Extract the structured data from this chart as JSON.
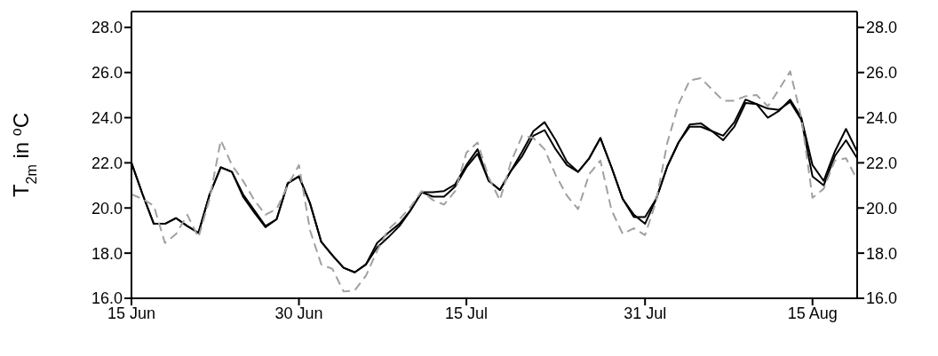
{
  "chart_data": {
    "type": "line",
    "ylabel": "T$_{2m}$ in $^{o}$C",
    "x": [
      "--06-15",
      "--06-16",
      "--06-17",
      "--06-18",
      "--06-19",
      "--06-20",
      "--06-21",
      "--06-22",
      "--06-23",
      "--06-24",
      "--06-25",
      "--06-26",
      "--06-27",
      "--06-28",
      "--06-29",
      "--06-30",
      "--07-01",
      "--07-02",
      "--07-03",
      "--07-04",
      "--07-05",
      "--07-06",
      "--07-07",
      "--07-08",
      "--07-09",
      "--07-10",
      "--07-11",
      "--07-12",
      "--07-13",
      "--07-14",
      "--07-15",
      "--07-16",
      "--07-17",
      "--07-18",
      "--07-19",
      "--07-20",
      "--07-21",
      "--07-22",
      "--07-23",
      "--07-24",
      "--07-25",
      "--07-26",
      "--07-27",
      "--07-28",
      "--07-29",
      "--07-30",
      "--07-31",
      "--08-01",
      "--08-02",
      "--08-03",
      "--08-04",
      "--08-05",
      "--08-06",
      "--08-07",
      "--08-08",
      "--08-09",
      "--08-10",
      "--08-11",
      "--08-12",
      "--08-13",
      "--08-14",
      "--08-15",
      "--08-16",
      "--08-17",
      "--08-18",
      "--08-19"
    ],
    "series": [
      {
        "color": "#000000",
        "line_style": "solid",
        "values": [
          22.0,
          20.6,
          19.3,
          19.3,
          19.55,
          19.2,
          18.9,
          20.6,
          21.8,
          21.6,
          20.5,
          19.8,
          19.15,
          19.5,
          21.1,
          21.4,
          20.2,
          18.5,
          17.9,
          17.35,
          17.15,
          17.5,
          18.25,
          18.7,
          19.2,
          19.9,
          20.7,
          20.5,
          20.5,
          20.95,
          21.8,
          22.4,
          21.2,
          20.8,
          21.65,
          22.3,
          23.2,
          23.45,
          22.6,
          21.9,
          21.6,
          22.2,
          23.1,
          21.8,
          20.4,
          19.7,
          19.3,
          20.4,
          21.85,
          22.9,
          23.6,
          23.6,
          23.4,
          23.2,
          23.8,
          24.8,
          24.6,
          24.0,
          24.3,
          24.8,
          24.0,
          21.9,
          21.2,
          22.5,
          23.5,
          22.5
        ]
      },
      {
        "color": "#000000",
        "line_style": "solid",
        "values": [
          22.0,
          20.6,
          19.3,
          19.3,
          19.55,
          19.2,
          18.9,
          20.6,
          21.8,
          21.6,
          20.6,
          19.9,
          19.2,
          19.5,
          21.1,
          21.4,
          20.2,
          18.5,
          17.9,
          17.35,
          17.15,
          17.5,
          18.45,
          18.9,
          19.3,
          19.9,
          20.7,
          20.7,
          20.75,
          21.05,
          21.9,
          22.6,
          21.2,
          20.8,
          21.65,
          22.5,
          23.4,
          23.8,
          23.0,
          22.05,
          21.6,
          22.2,
          23.1,
          21.8,
          20.4,
          19.6,
          19.6,
          20.4,
          21.85,
          22.9,
          23.7,
          23.75,
          23.4,
          23.0,
          23.6,
          24.65,
          24.6,
          24.4,
          24.35,
          24.7,
          23.9,
          21.4,
          21.0,
          22.3,
          23.0,
          22.2
        ]
      },
      {
        "color": "#a0a0a0",
        "line_style": "dashed",
        "values": [
          20.6,
          20.4,
          20.1,
          18.45,
          18.85,
          19.7,
          18.7,
          20.4,
          23.0,
          21.9,
          21.2,
          20.35,
          19.7,
          19.95,
          21.0,
          21.9,
          19.0,
          17.5,
          17.3,
          16.3,
          16.35,
          17.0,
          18.1,
          19.05,
          19.5,
          20.05,
          20.75,
          20.35,
          20.15,
          20.75,
          22.45,
          22.9,
          21.35,
          20.35,
          22.05,
          23.2,
          23.1,
          22.6,
          21.45,
          20.55,
          19.95,
          21.5,
          22.1,
          19.9,
          18.85,
          19.1,
          18.8,
          20.3,
          22.9,
          24.6,
          25.65,
          25.75,
          25.25,
          24.75,
          24.75,
          24.95,
          25.0,
          24.5,
          25.25,
          26.05,
          24.0,
          20.45,
          20.85,
          22.1,
          22.2,
          21.25
        ]
      }
    ],
    "xlim": [
      "--06-15",
      "--08-19"
    ],
    "xticks": [
      {
        "value": "--06-15",
        "label": "15 Jun"
      },
      {
        "value": "--06-30",
        "label": "30 Jun"
      },
      {
        "value": "--07-15",
        "label": "15 Jul"
      },
      {
        "value": "--07-31",
        "label": "31 Jul"
      },
      {
        "value": "--08-15",
        "label": "15 Aug"
      }
    ],
    "ylim": [
      16,
      28.7
    ],
    "yticks": [
      {
        "value": 16,
        "label": "16.0"
      },
      {
        "value": 18,
        "label": "18.0"
      },
      {
        "value": 20,
        "label": "20.0"
      },
      {
        "value": 22,
        "label": "22.0"
      },
      {
        "value": 24,
        "label": "24.0"
      },
      {
        "value": 26,
        "label": "26.0"
      },
      {
        "value": 28,
        "label": "28.0"
      }
    ],
    "y2lim": [
      16,
      28.7
    ],
    "y2ticks": [
      {
        "value": 16,
        "label": "16.0"
      },
      {
        "value": 18,
        "label": "18.0"
      },
      {
        "value": 20,
        "label": "20.0"
      },
      {
        "value": 22,
        "label": "22.0"
      },
      {
        "value": 24,
        "label": "24.0"
      },
      {
        "value": 26,
        "label": "26.0"
      },
      {
        "value": 28,
        "label": "28.0"
      }
    ]
  }
}
